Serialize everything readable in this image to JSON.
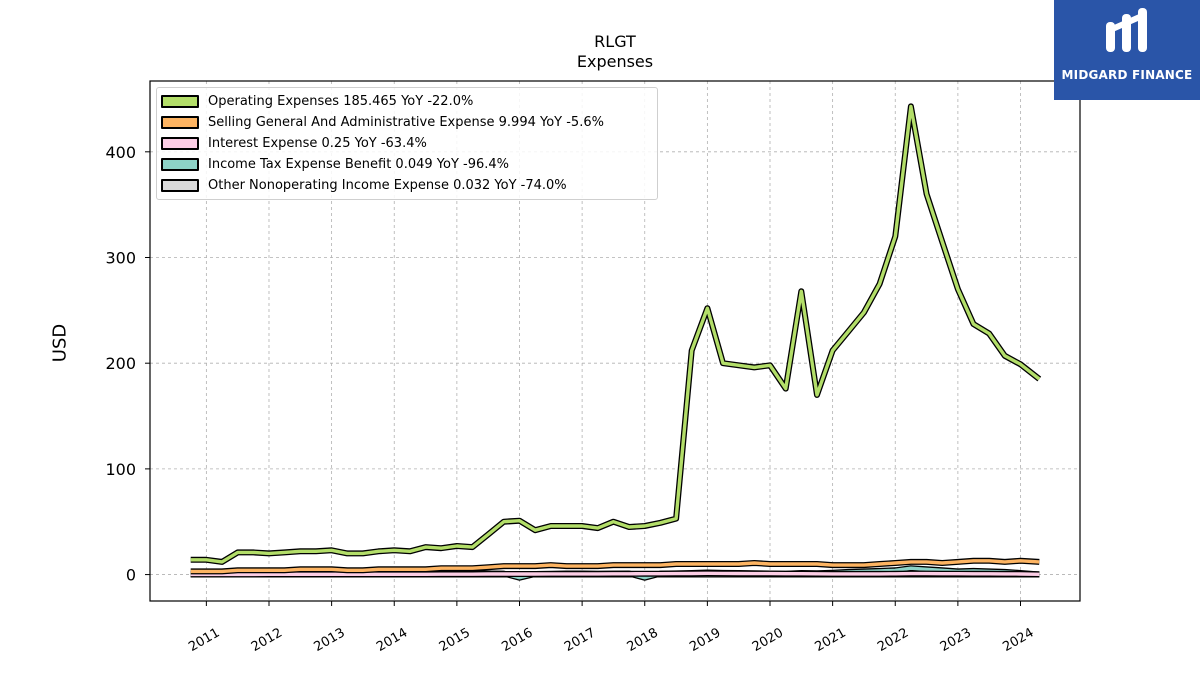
{
  "header": {
    "ticker": "RLGT",
    "subtitle": "Expenses"
  },
  "logo": {
    "text": "MIDGARD FINANCE",
    "background": "#2a55a8",
    "icon": "midgard-logo-icon"
  },
  "legend": {
    "placement": "upper-left",
    "items": [
      {
        "label": "Operating Expenses  185.465 YoY -22.0%",
        "color": "#b3de69"
      },
      {
        "label": "Selling General And Administrative Expense  9.994 YoY -5.6%",
        "color": "#fdb462"
      },
      {
        "label": "Interest Expense  0.25 YoY -63.4%",
        "color": "#fccde5"
      },
      {
        "label": "Income Tax Expense Benefit  0.049 YoY -96.4%",
        "color": "#8dd3c7"
      },
      {
        "label": "Other Nonoperating Income Expense  0.032 YoY -74.0%",
        "color": "#d9d9d9"
      }
    ]
  },
  "chart_data": {
    "type": "line",
    "ylabel": "USD",
    "xlim": [
      2010.1,
      2024.95
    ],
    "ylim": [
      -25,
      467
    ],
    "grid": true,
    "x_ticks": [
      "2011",
      "2012",
      "2013",
      "2014",
      "2015",
      "2016",
      "2017",
      "2018",
      "2019",
      "2020",
      "2021",
      "2022",
      "2023",
      "2024"
    ],
    "y_ticks": [
      0,
      100,
      200,
      300,
      400
    ],
    "x": [
      2010.75,
      2011.0,
      2011.25,
      2011.5,
      2011.75,
      2012.0,
      2012.25,
      2012.5,
      2012.75,
      2013.0,
      2013.25,
      2013.5,
      2013.75,
      2014.0,
      2014.25,
      2014.5,
      2014.75,
      2015.0,
      2015.25,
      2015.5,
      2015.75,
      2016.0,
      2016.25,
      2016.5,
      2016.75,
      2017.0,
      2017.25,
      2017.5,
      2017.75,
      2018.0,
      2018.25,
      2018.5,
      2018.75,
      2019.0,
      2019.25,
      2019.5,
      2019.75,
      2020.0,
      2020.25,
      2020.5,
      2020.75,
      2021.0,
      2021.25,
      2021.5,
      2021.75,
      2022.0,
      2022.25,
      2022.5,
      2022.75,
      2023.0,
      2023.25,
      2023.5,
      2023.75,
      2024.0,
      2024.3
    ],
    "series": [
      {
        "name": "Operating Expenses",
        "color": "#b3de69",
        "values": [
          14,
          14,
          12,
          21,
          21,
          20,
          21,
          22,
          22,
          23,
          20,
          20,
          22,
          23,
          22,
          26,
          25,
          27,
          26,
          38,
          50,
          51,
          42,
          46,
          46,
          46,
          44,
          50,
          45,
          46,
          49,
          53,
          212,
          252,
          200,
          198,
          196,
          198,
          176,
          268,
          170,
          212,
          230,
          248,
          275,
          320,
          443,
          360,
          315,
          270,
          237,
          228,
          207,
          199,
          185
        ]
      },
      {
        "name": "Selling General And Administrative Expense",
        "color": "#fdb462",
        "values": [
          3,
          3,
          3,
          4,
          4,
          4,
          4,
          5,
          5,
          5,
          4,
          4,
          5,
          5,
          5,
          5,
          6,
          6,
          6,
          7,
          8,
          8,
          8,
          9,
          8,
          8,
          8,
          9,
          9,
          9,
          9,
          10,
          10,
          10,
          10,
          10,
          11,
          10,
          10,
          10,
          10,
          9,
          9,
          9,
          10,
          11,
          12,
          12,
          11,
          12,
          13,
          13,
          12,
          13,
          12
        ]
      },
      {
        "name": "Interest Expense",
        "color": "#fccde5",
        "values": [
          0.2,
          0.2,
          0.2,
          0.2,
          0.2,
          0.3,
          0.3,
          0.3,
          0.3,
          0.3,
          0.3,
          0.3,
          0.3,
          0.3,
          0.3,
          0.3,
          0.4,
          0.4,
          0.4,
          0.5,
          0.5,
          0.5,
          0.5,
          0.6,
          0.6,
          0.6,
          0.6,
          0.7,
          0.7,
          0.8,
          0.8,
          0.9,
          1,
          1.2,
          1.1,
          1,
          0.9,
          0.9,
          0.8,
          0.8,
          0.7,
          0.6,
          0.6,
          0.6,
          0.6,
          0.7,
          0.9,
          0.9,
          0.8,
          0.8,
          0.7,
          0.7,
          0.6,
          0.5,
          0.25
        ]
      },
      {
        "name": "Income Tax Expense Benefit",
        "color": "#8dd3c7",
        "values": [
          0.5,
          0.6,
          0.5,
          0.6,
          0.7,
          0.6,
          0.7,
          0.8,
          0.7,
          0.8,
          0.7,
          0.8,
          0.9,
          0.8,
          0.9,
          1,
          0.9,
          1,
          1.1,
          1,
          0.9,
          -3,
          0.5,
          0.6,
          1,
          1,
          0.8,
          0.9,
          1,
          -3,
          0.9,
          1.1,
          1.5,
          2,
          1.6,
          1.5,
          1.2,
          1,
          0.8,
          1.5,
          1.2,
          1.8,
          2.5,
          3,
          3.5,
          4,
          6,
          5,
          4,
          3,
          3.5,
          3,
          2.5,
          1.5,
          0.049
        ]
      },
      {
        "name": "Other Nonoperating Income Expense",
        "color": "#d9d9d9",
        "values": [
          0.1,
          0.1,
          0.1,
          0.1,
          0.1,
          0.1,
          0.1,
          0.1,
          0.1,
          0.1,
          0.1,
          0.1,
          0.1,
          0.1,
          0.1,
          0.1,
          0.1,
          0.1,
          0.1,
          0.1,
          0.1,
          0.1,
          0.1,
          0.1,
          0.1,
          0.1,
          0.1,
          0.1,
          0.1,
          0.1,
          0.1,
          0.1,
          0.1,
          0.1,
          0.1,
          0.1,
          0.1,
          0.1,
          0.1,
          0.1,
          0.1,
          0.1,
          0.1,
          0.1,
          0.1,
          0.1,
          0.1,
          0.1,
          0.1,
          0.1,
          0.1,
          0.1,
          0.1,
          0.1,
          0.032
        ]
      }
    ]
  }
}
